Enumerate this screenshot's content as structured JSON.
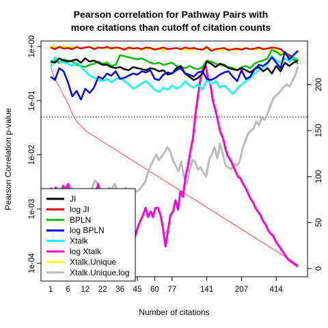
{
  "chart_data": {
    "type": "line",
    "title_lines": [
      "Pearson correlation for Pathway Pairs with",
      "more citations than cutoff of citation counts"
    ],
    "xlabel": "Number of citations",
    "ylabel_left": "Pearson Correlation p-value",
    "x_tick_labels": [
      "1",
      "6",
      "12",
      "22",
      "36",
      "45",
      "60",
      "77",
      "141",
      "207",
      "414"
    ],
    "x_tick_index": [
      0,
      4,
      8,
      12,
      16,
      20,
      24,
      28,
      36,
      44,
      52
    ],
    "y_left_log_range": [
      -4.25,
      0.1
    ],
    "y_left_ticks": [
      {
        "exp": 0,
        "label": "1e+00"
      },
      {
        "exp": -1,
        "label": "1e-01"
      },
      {
        "exp": -2,
        "label": "1e-02"
      },
      {
        "exp": -3,
        "label": "1e-03"
      },
      {
        "exp": -4,
        "label": "1e-04"
      }
    ],
    "y_right_range": [
      0,
      240
    ],
    "y_right_ticks": [
      "0",
      "50",
      "100",
      "150",
      "200"
    ],
    "threshold_p": 0.05,
    "n_points": 58,
    "series": [
      {
        "name": "JI",
        "color": "#000000",
        "axis": "left",
        "width": 2.5,
        "logp": [
          -0.28,
          -0.3,
          -0.22,
          -0.26,
          -0.28,
          -0.26,
          -0.24,
          -0.3,
          -0.22,
          -0.28,
          -0.26,
          -0.3,
          -0.34,
          -0.34,
          -0.38,
          -0.4,
          -0.38,
          -0.42,
          -0.44,
          -0.38,
          -0.4,
          -0.42,
          -0.44,
          -0.4,
          -0.42,
          -0.46,
          -0.44,
          -0.52,
          -0.5,
          -0.4,
          -0.36,
          -0.5,
          -0.56,
          -0.62,
          -0.58,
          -0.5,
          -0.28,
          -0.32,
          -0.38,
          -0.32,
          -0.34,
          -0.4,
          -0.42,
          -0.44,
          -0.4,
          -0.44,
          -0.48,
          -0.42,
          -0.38,
          -0.46,
          -0.4,
          -0.5,
          -0.36,
          -0.46,
          -0.3,
          -0.36,
          -0.3,
          -0.26
        ]
      },
      {
        "name": "log JI",
        "color": "#e00000",
        "axis": "left",
        "width": 2.5,
        "logp": [
          -0.02,
          -0.05,
          -0.01,
          -0.04,
          -0.03,
          -0.05,
          -0.01,
          -0.04,
          -0.02,
          -0.01,
          -0.05,
          -0.02,
          -0.03,
          -0.01,
          -0.04,
          -0.02,
          -0.03,
          -0.06,
          -0.02,
          -0.04,
          -0.03,
          -0.05,
          -0.02,
          -0.03,
          -0.06,
          -0.04,
          -0.02,
          -0.05,
          -0.04,
          -0.03,
          -0.05,
          -0.02,
          -0.04,
          -0.03,
          -0.05,
          -0.06,
          -0.01,
          -0.08,
          -0.05,
          -0.04,
          -0.03,
          -0.07,
          -0.05,
          -0.04,
          -0.06,
          -0.03,
          -0.05,
          -0.04,
          -0.02,
          -0.05,
          -0.04,
          -0.02,
          -0.03,
          -0.05,
          -0.12,
          -0.16,
          -0.2,
          -0.26
        ]
      },
      {
        "name": "BPLN",
        "color": "#00c000",
        "axis": "left",
        "width": 2.5,
        "logp": [
          -0.28,
          -0.26,
          -0.3,
          -0.24,
          -0.26,
          -0.28,
          -0.34,
          -0.36,
          -0.38,
          -0.34,
          -0.32,
          -0.28,
          -0.32,
          -0.3,
          -0.36,
          -0.34,
          -0.16,
          -0.18,
          -0.2,
          -0.22,
          -0.24,
          -0.22,
          -0.26,
          -0.3,
          -0.32,
          -0.3,
          -0.34,
          -0.32,
          -0.3,
          -0.36,
          -0.38,
          -0.4,
          -0.36,
          -0.4,
          -0.42,
          -0.38,
          -0.26,
          -0.28,
          -0.32,
          -0.34,
          -0.36,
          -0.38,
          -0.4,
          -0.44,
          -0.38,
          -0.36,
          -0.4,
          -0.32,
          -0.28,
          -0.26,
          -0.22,
          -0.06,
          -0.1,
          -0.16,
          -0.12,
          -0.2,
          -0.24,
          -0.32
        ]
      },
      {
        "name": "log BPLN",
        "color": "#0000dd",
        "axis": "left",
        "width": 2.5,
        "logp": [
          -0.56,
          -0.62,
          -0.4,
          -0.46,
          -0.66,
          -0.92,
          -0.82,
          -0.98,
          -0.78,
          -0.86,
          -0.76,
          -0.56,
          -0.6,
          -0.5,
          -0.54,
          -0.46,
          -0.6,
          -0.58,
          -0.54,
          -0.5,
          -0.52,
          -0.46,
          -0.48,
          -0.44,
          -0.6,
          -0.62,
          -0.52,
          -0.48,
          -0.5,
          -0.44,
          -0.4,
          -0.5,
          -0.52,
          -0.56,
          -0.48,
          -0.46,
          -0.6,
          -0.62,
          -0.58,
          -0.52,
          -0.48,
          -0.46,
          -0.56,
          -0.64,
          -0.44,
          -0.6,
          -0.56,
          -0.42,
          -0.34,
          -0.36,
          -0.3,
          -0.2,
          -0.3,
          -0.4,
          -0.1,
          -0.24,
          -0.16,
          -0.08
        ]
      },
      {
        "name": "Xtalk",
        "color": "#00ffff",
        "axis": "left",
        "width": 2.5,
        "logp": [
          -0.38,
          -0.2,
          -0.28,
          -0.3,
          -0.32,
          -0.36,
          -0.3,
          -0.38,
          -0.46,
          -0.54,
          -0.58,
          -0.62,
          -0.64,
          -0.6,
          -0.66,
          -0.6,
          -0.58,
          -0.64,
          -0.7,
          -0.78,
          -0.74,
          -0.68,
          -0.64,
          -0.72,
          -0.8,
          -0.84,
          -0.76,
          -0.8,
          -0.72,
          -0.78,
          -0.74,
          -0.64,
          -0.72,
          -0.76,
          -0.7,
          -0.8,
          -0.62,
          -0.7,
          -0.64,
          -0.76,
          -0.72,
          -0.8,
          -0.88,
          -0.78,
          -0.7,
          -0.64,
          -0.58,
          -0.5,
          -0.44,
          -0.38,
          -0.32,
          -0.18,
          -0.26,
          -0.3,
          -0.22,
          -0.28,
          -0.2,
          -0.24
        ]
      },
      {
        "name": "log Xtalk",
        "color": "#ff00dd",
        "axis": "right",
        "width": 3,
        "vals": [
          88,
          82,
          88,
          85,
          80,
          90,
          86,
          92,
          80,
          76,
          72,
          68,
          66,
          62,
          58,
          46,
          50,
          60,
          78,
          92,
          74,
          56,
          48,
          66,
          72,
          60,
          34,
          30,
          22,
          12,
          4,
          16,
          22,
          30,
          36,
          46,
          52,
          58,
          66,
          56,
          62,
          56,
          66,
          66,
          58,
          44,
          24,
          42,
          58,
          62,
          74,
          64,
          84,
          78,
          100,
          112,
          128,
          142,
          168,
          188,
          206,
          218,
          222,
          206,
          200,
          182,
          172,
          160,
          148,
          142,
          130,
          122,
          118,
          112,
          106,
          100,
          98,
          92,
          88,
          82,
          76,
          72,
          66,
          62,
          58,
          52,
          48,
          42,
          38,
          36,
          30,
          26,
          22,
          18,
          14,
          10,
          8,
          6,
          4,
          2
        ]
      },
      {
        "name": "Xtalk.Unique",
        "color": "#ffff00",
        "axis": "left",
        "width": 2.5,
        "logp": [
          0.01,
          -0.01,
          0.0,
          0.0,
          -0.02,
          -0.02,
          -0.01,
          -0.03,
          -0.02,
          -0.01,
          -0.03,
          -0.02,
          -0.03,
          -0.04,
          -0.02,
          -0.03,
          -0.04,
          -0.03,
          -0.05,
          -0.03,
          -0.04,
          -0.06,
          -0.04,
          -0.05,
          -0.03,
          -0.05,
          -0.07,
          -0.05,
          -0.04,
          -0.03,
          -0.06,
          -0.05,
          -0.07,
          -0.04,
          -0.05,
          -0.06,
          -0.04,
          -0.05,
          -0.06,
          -0.07,
          -0.05,
          -0.04,
          -0.06,
          -0.07,
          -0.04,
          -0.03,
          -0.05,
          -0.06,
          -0.04,
          -0.05,
          -0.03,
          -0.06,
          -0.08,
          -0.12,
          -0.16,
          -0.2,
          -0.22,
          -0.26
        ]
      },
      {
        "name": "Xtalk.Unique.log",
        "color": "#bbbbbb",
        "axis": "right",
        "width": 3,
        "vals": [
          86,
          82,
          88,
          86,
          80,
          88,
          84,
          90,
          86,
          82,
          80,
          78,
          84,
          86,
          82,
          88,
          96,
          92,
          86,
          80,
          82,
          88,
          86,
          92,
          86,
          84,
          84,
          88,
          74,
          80,
          82,
          84,
          86,
          90,
          94,
          104,
          112,
          118,
          124,
          118,
          122,
          126,
          132,
          128,
          118,
          112,
          106,
          116,
          100,
          92,
          106,
          118,
          116,
          108,
          110,
          104,
          100,
          118,
          124,
          132,
          120,
          136,
          124,
          112,
          110,
          108,
          114,
          112,
          116,
          130,
          138,
          146,
          150,
          152,
          160,
          156,
          164,
          162,
          168,
          176,
          184,
          188,
          190,
          194,
          198,
          200,
          198,
          204,
          210,
          220
        ]
      }
    ],
    "red_thin_line": {
      "name": "",
      "color": "#ff2222",
      "axis": "right",
      "x": [
        0,
        1,
        2,
        3,
        4,
        5,
        6,
        8,
        10,
        12,
        14,
        57
      ],
      "vals": [
        220,
        206,
        198,
        188,
        180,
        168,
        160,
        150,
        144,
        138,
        132,
        4
      ]
    },
    "legend_entries": [
      "JI",
      "log JI",
      "BPLN",
      "log BPLN",
      "Xtalk",
      "log Xtalk",
      "Xtalk.Unique",
      "Xtalk.Unique.log"
    ]
  }
}
